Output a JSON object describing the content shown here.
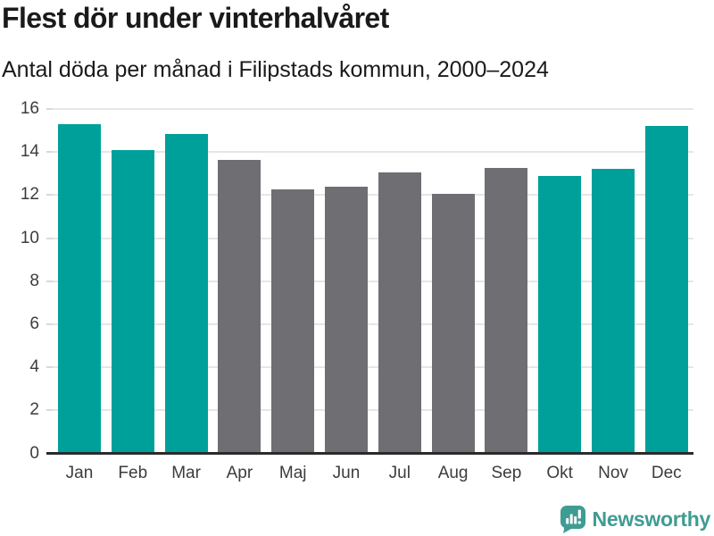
{
  "header": {
    "title": "Flest dör under vinterhalvåret",
    "subtitle": "Antal döda per månad i Filipstads kommun, 2000–2024"
  },
  "chart_data": {
    "type": "bar",
    "title": "Flest dör under vinterhalvåret",
    "subtitle": "Antal döda per månad i Filipstads kommun, 2000–2024",
    "categories": [
      "Jan",
      "Feb",
      "Mar",
      "Apr",
      "Maj",
      "Jun",
      "Jul",
      "Aug",
      "Sep",
      "Okt",
      "Nov",
      "Dec"
    ],
    "values": [
      15.3,
      14.1,
      14.85,
      13.65,
      12.25,
      12.4,
      13.05,
      12.05,
      13.25,
      12.9,
      13.2,
      15.2
    ],
    "bar_color_keys": [
      "teal",
      "teal",
      "teal",
      "gray",
      "gray",
      "gray",
      "gray",
      "gray",
      "gray",
      "teal",
      "teal",
      "teal"
    ],
    "palette": {
      "teal": "#00a09a",
      "gray": "#6e6e73"
    },
    "xlabel": "",
    "ylabel": "",
    "ylim": [
      0,
      16
    ],
    "yticks": [
      0,
      2,
      4,
      6,
      8,
      10,
      12,
      14,
      16
    ],
    "grid": true,
    "legend": false
  },
  "footer": {
    "brand": "Newsworthy",
    "brand_color": "#3f9c92"
  },
  "colors": {
    "background": "#ffffff",
    "gridline": "#e6e6e8",
    "tick_nub": "#d9d9db",
    "axis_line": "#2b2b2b",
    "title_text": "#1a1a1a",
    "tick_label_text": "#3c3c3c"
  }
}
